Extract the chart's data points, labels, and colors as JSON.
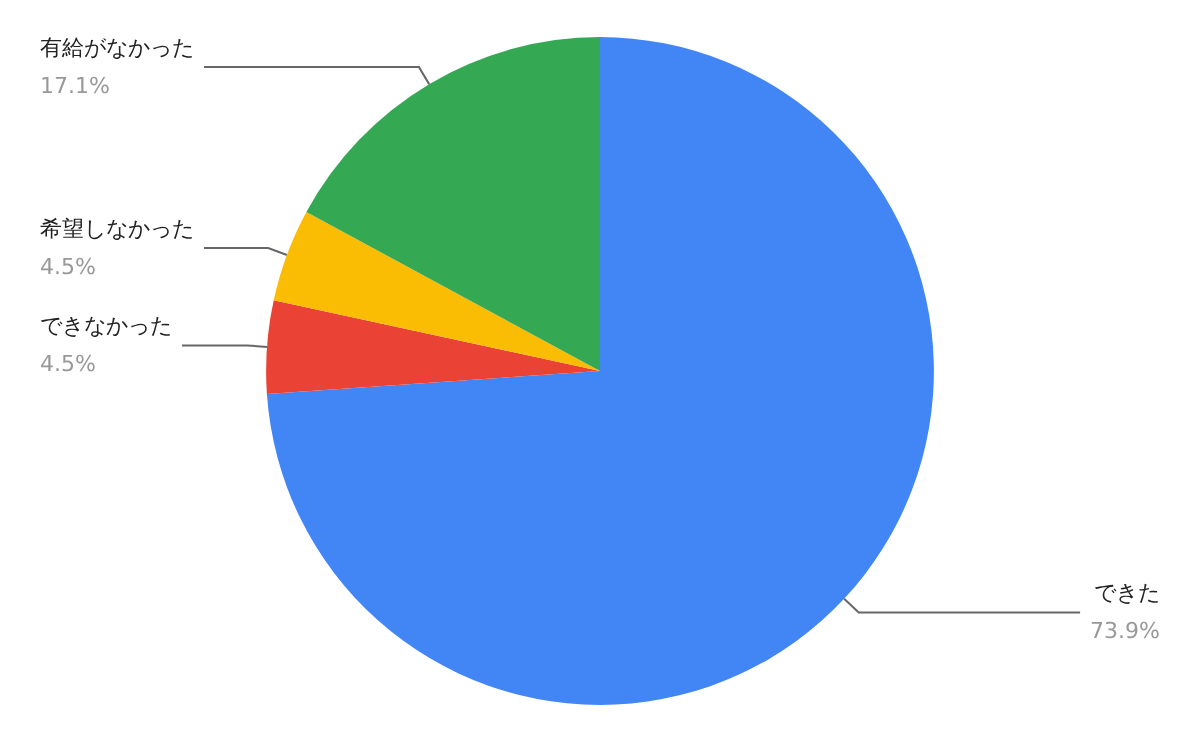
{
  "chart_data": {
    "type": "pie",
    "categories": [
      "できた",
      "できなかった",
      "希望しなかった",
      "有給がなかった"
    ],
    "values": [
      73.9,
      4.5,
      4.5,
      17.1
    ],
    "colors": [
      "#4285f4",
      "#ea4335",
      "#fbbc04",
      "#34a853"
    ],
    "value_labels": [
      "73.9%",
      "4.5%",
      "4.5%",
      "17.1%"
    ],
    "legend": false
  }
}
